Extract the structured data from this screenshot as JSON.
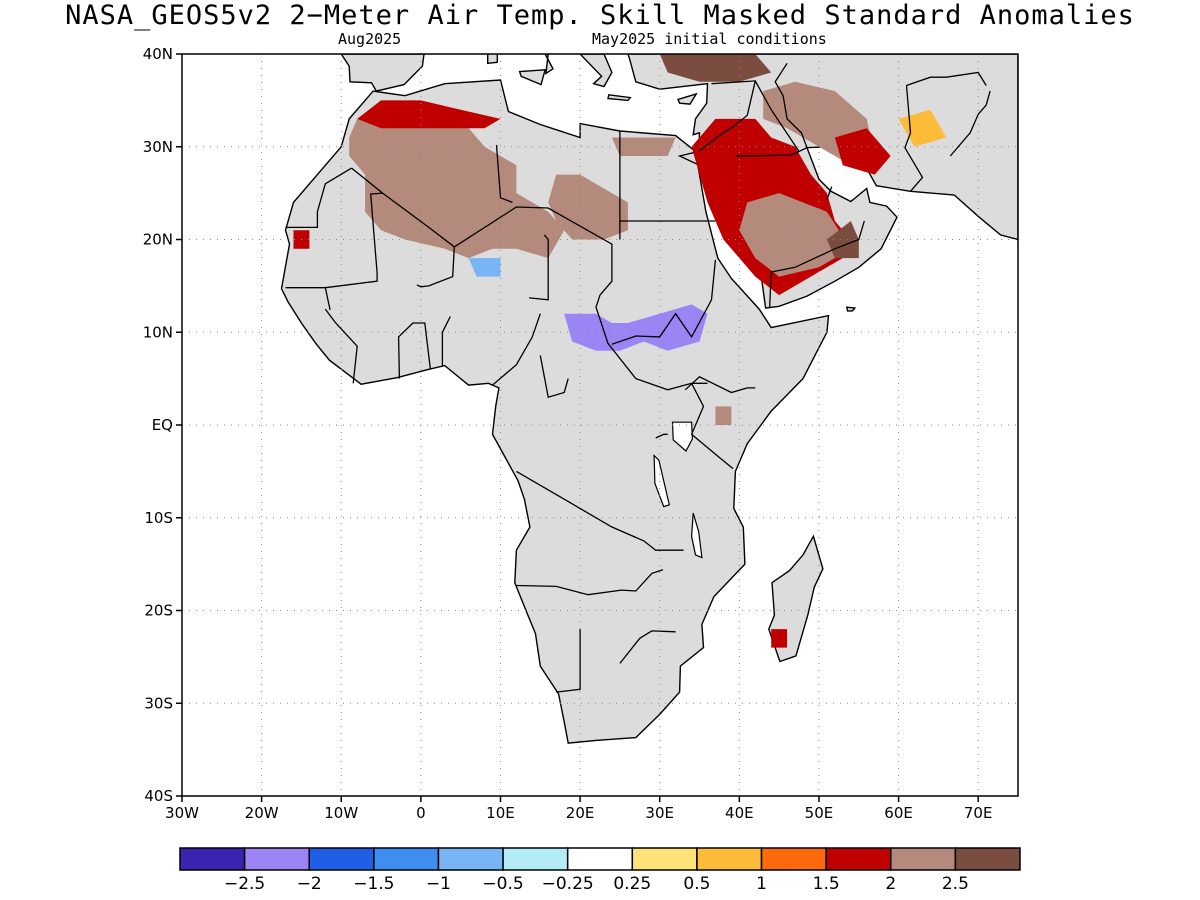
{
  "title": "NASA_GEOS5v2 2−Meter Air Temp. Skill Masked Standard Anomalies",
  "subtitle_left": "Aug2025",
  "subtitle_right": "May2025 initial conditions",
  "map": {
    "lon_range": [
      -30,
      75
    ],
    "lat_range": [
      -40,
      40
    ],
    "lat_ticks": [
      {
        "value": 40,
        "label": "40N"
      },
      {
        "value": 30,
        "label": "30N"
      },
      {
        "value": 20,
        "label": "20N"
      },
      {
        "value": 10,
        "label": "10N"
      },
      {
        "value": 0,
        "label": "EQ"
      },
      {
        "value": -10,
        "label": "10S"
      },
      {
        "value": -20,
        "label": "20S"
      },
      {
        "value": -30,
        "label": "30S"
      },
      {
        "value": -40,
        "label": "40S"
      }
    ],
    "lon_ticks": [
      {
        "value": -30,
        "label": "30W"
      },
      {
        "value": -20,
        "label": "20W"
      },
      {
        "value": -10,
        "label": "10W"
      },
      {
        "value": 0,
        "label": "0"
      },
      {
        "value": 10,
        "label": "10E"
      },
      {
        "value": 20,
        "label": "20E"
      },
      {
        "value": 30,
        "label": "30E"
      },
      {
        "value": 40,
        "label": "40E"
      },
      {
        "value": 50,
        "label": "50E"
      },
      {
        "value": 60,
        "label": "60E"
      },
      {
        "value": 70,
        "label": "70E"
      }
    ],
    "grid": "dotted",
    "land_color": "#dcdcdc",
    "coast_color": "#000000"
  },
  "colorbar": {
    "colors": [
      "#3b22b0",
      "#9b85f5",
      "#1f5ee6",
      "#3e8df0",
      "#77b5f5",
      "#b3ecf7",
      "#ffffff",
      "#fde27a",
      "#fdbb3a",
      "#fd6a0e",
      "#c00000",
      "#b48a7c",
      "#7b4d40"
    ],
    "labels": [
      "−2.5",
      "−2",
      "−1.5",
      "−1",
      "−0.5",
      "−0.25",
      "0.25",
      "0.5",
      "1",
      "1.5",
      "2",
      "2.5"
    ]
  },
  "anomaly_regions": [
    {
      "name": "sahara-west",
      "level": 2,
      "lonlat": [
        [
          -8,
          33
        ],
        [
          -2,
          34
        ],
        [
          5,
          33
        ],
        [
          8,
          30
        ],
        [
          10,
          29
        ],
        [
          12,
          28
        ],
        [
          12,
          25
        ],
        [
          16,
          23
        ],
        [
          18,
          21
        ],
        [
          16,
          18
        ],
        [
          12,
          19
        ],
        [
          9,
          19
        ],
        [
          6,
          18
        ],
        [
          3,
          19
        ],
        [
          -2,
          20
        ],
        [
          -5,
          21
        ],
        [
          -7,
          23
        ],
        [
          -7,
          27
        ],
        [
          -9,
          29
        ],
        [
          -9,
          31
        ]
      ]
    },
    {
      "name": "libya-hotspot",
      "level": 2,
      "lonlat": [
        [
          17,
          27
        ],
        [
          20,
          27
        ],
        [
          24,
          25
        ],
        [
          26,
          24
        ],
        [
          26,
          21
        ],
        [
          23,
          20
        ],
        [
          19,
          20
        ],
        [
          17,
          22
        ],
        [
          16,
          24
        ]
      ]
    },
    {
      "name": "egypt-north",
      "level": 2,
      "lonlat": [
        [
          24,
          31
        ],
        [
          29,
          31
        ],
        [
          32,
          31
        ],
        [
          31,
          29
        ],
        [
          25,
          29
        ]
      ]
    },
    {
      "name": "arabia-orange",
      "level": 1.5,
      "lonlat": [
        [
          34,
          30
        ],
        [
          37,
          33
        ],
        [
          42,
          33
        ],
        [
          44,
          31
        ],
        [
          47,
          30
        ],
        [
          49,
          27
        ],
        [
          51,
          25
        ],
        [
          52,
          22
        ],
        [
          55,
          19
        ],
        [
          51,
          17
        ],
        [
          45,
          14
        ],
        [
          42,
          16
        ],
        [
          38,
          20
        ],
        [
          36,
          24
        ],
        [
          35,
          27
        ]
      ]
    },
    {
      "name": "arabia-red",
      "level": 2,
      "lonlat": [
        [
          41,
          24
        ],
        [
          45,
          25
        ],
        [
          51,
          23
        ],
        [
          54,
          19
        ],
        [
          50,
          17
        ],
        [
          45,
          16
        ],
        [
          42,
          18
        ],
        [
          40,
          21
        ]
      ]
    },
    {
      "name": "oman-brown",
      "level": 2.5,
      "lonlat": [
        [
          51,
          20
        ],
        [
          54,
          22
        ],
        [
          55,
          20
        ],
        [
          55,
          18
        ],
        [
          52,
          18
        ]
      ]
    },
    {
      "name": "iran-red",
      "level": 2,
      "lonlat": [
        [
          43,
          36
        ],
        [
          47,
          37
        ],
        [
          52,
          36
        ],
        [
          56,
          33
        ],
        [
          57,
          29
        ],
        [
          54,
          28
        ],
        [
          50,
          30
        ],
        [
          46,
          32
        ],
        [
          43,
          33
        ]
      ]
    },
    {
      "name": "iran-orange",
      "level": 1.5,
      "lonlat": [
        [
          52,
          31
        ],
        [
          56,
          32
        ],
        [
          59,
          29
        ],
        [
          57,
          27
        ],
        [
          53,
          28
        ]
      ]
    },
    {
      "name": "pakistan-yellow",
      "level": 0.5,
      "lonlat": [
        [
          60,
          33
        ],
        [
          64,
          34
        ],
        [
          66,
          31
        ],
        [
          62,
          30
        ]
      ]
    },
    {
      "name": "turkey-brown",
      "level": 2.5,
      "lonlat": [
        [
          30,
          40
        ],
        [
          36,
          40
        ],
        [
          42,
          40
        ],
        [
          44,
          38
        ],
        [
          40,
          37
        ],
        [
          35,
          37
        ],
        [
          31,
          38
        ]
      ]
    },
    {
      "name": "algeria-north-orange",
      "level": 1.5,
      "lonlat": [
        [
          -8,
          33
        ],
        [
          -5,
          35
        ],
        [
          0,
          35
        ],
        [
          5,
          34
        ],
        [
          10,
          33
        ],
        [
          8,
          32
        ],
        [
          0,
          32
        ],
        [
          -5,
          32
        ]
      ]
    },
    {
      "name": "mauritania-spot",
      "level": 1.5,
      "lonlat": [
        [
          -16,
          21
        ],
        [
          -14,
          21
        ],
        [
          -14,
          19
        ],
        [
          -16,
          19
        ]
      ]
    },
    {
      "name": "sahel-blue",
      "level": -1,
      "lonlat": [
        [
          6,
          18
        ],
        [
          10,
          18
        ],
        [
          10,
          16
        ],
        [
          7,
          16
        ]
      ]
    },
    {
      "name": "sudan-purple",
      "level": -2.5,
      "lonlat": [
        [
          18,
          12
        ],
        [
          22,
          12
        ],
        [
          24,
          11
        ],
        [
          26,
          11
        ],
        [
          30,
          12
        ],
        [
          34,
          13
        ],
        [
          36,
          12
        ],
        [
          35,
          9
        ],
        [
          31,
          8
        ],
        [
          28,
          9
        ],
        [
          25,
          8
        ],
        [
          22,
          8
        ],
        [
          19,
          9
        ]
      ]
    },
    {
      "name": "ethiopia-spot",
      "level": 2,
      "lonlat": [
        [
          37,
          2
        ],
        [
          39,
          2
        ],
        [
          39,
          0
        ],
        [
          37,
          0
        ]
      ]
    },
    {
      "name": "madagascar-spot",
      "level": 1.5,
      "lonlat": [
        [
          44,
          -22
        ],
        [
          46,
          -22
        ],
        [
          46,
          -24
        ],
        [
          44,
          -24
        ]
      ]
    }
  ]
}
